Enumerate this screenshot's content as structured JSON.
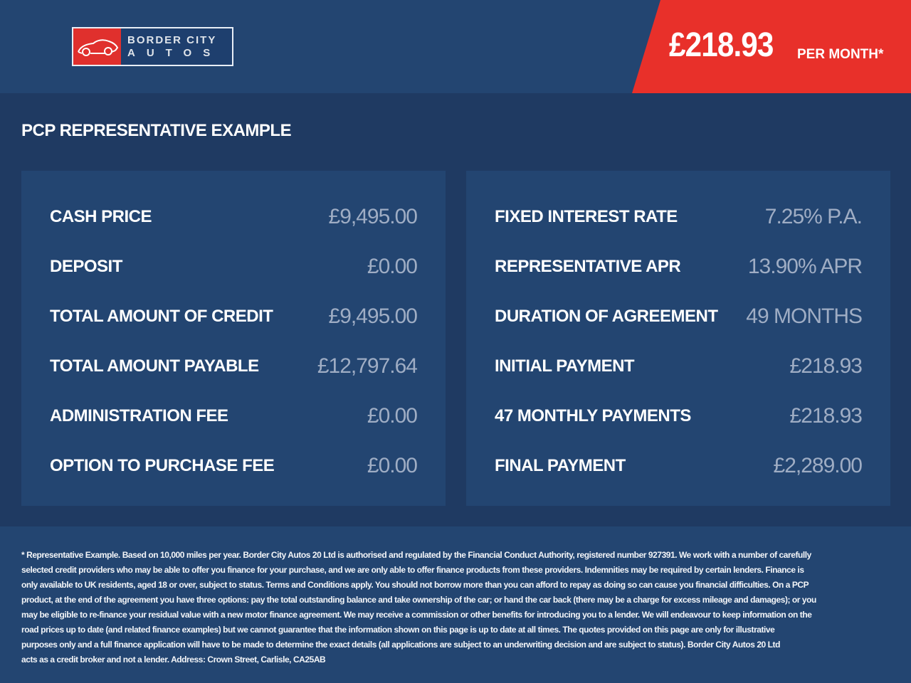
{
  "brand": {
    "name_line1": "BORDER CITY",
    "name_line2": "AUTOS",
    "colors": {
      "accent": "#e8302a",
      "background": "#1f3a62",
      "panel": "#234571"
    }
  },
  "monthly": {
    "amount": "£218.93",
    "suffix": "PER MONTH*"
  },
  "section_title": "PCP REPRESENTATIVE EXAMPLE",
  "left_rows": [
    {
      "label": "CASH PRICE",
      "value": "£9,495.00"
    },
    {
      "label": "DEPOSIT",
      "value": "£0.00"
    },
    {
      "label": "TOTAL AMOUNT OF CREDIT",
      "value": "£9,495.00"
    },
    {
      "label": "TOTAL AMOUNT PAYABLE",
      "value": "£12,797.64"
    },
    {
      "label": "ADMINISTRATION FEE",
      "value": "£0.00"
    },
    {
      "label": "OPTION TO PURCHASE FEE",
      "value": "£0.00"
    }
  ],
  "right_rows": [
    {
      "label": "FIXED INTEREST RATE",
      "value": "7.25% P.A."
    },
    {
      "label": "REPRESENTATIVE APR",
      "value": "13.90% APR"
    },
    {
      "label": "DURATION OF AGREEMENT",
      "value": "49 MONTHS"
    },
    {
      "label": "INITIAL PAYMENT",
      "value": "£218.93"
    },
    {
      "label": "47 MONTHLY PAYMENTS",
      "value": "£218.93"
    },
    {
      "label": "FINAL PAYMENT",
      "value": "£2,289.00"
    }
  ],
  "disclaimer": [
    "* Representative Example. Based on 10,000 miles per year. Border City Autos 20 Ltd is authorised and regulated by the Financial Conduct Authority, registered number 927391. We work with a number of carefully",
    "selected credit providers who may be able to offer you finance for your purchase, and we are only able to offer finance products from these providers. Indemnities may be required by certain lenders. Finance is",
    "only available to UK residents, aged 18 or over, subject to status. Terms and Conditions apply. You should not borrow more than you can afford to repay as doing so can cause you financial difficulties. On a PCP",
    "product, at the end of the agreement you have three options: pay the total outstanding balance and take ownership of the car; or hand the car back (there may be a charge for excess mileage and damages); or you",
    "may be eligible to re-finance your residual value with a new motor finance agreement. We may receive a commission or other benefits for introducing you to a lender. We will endeavour to keep information on the",
    "road prices up to date (and related finance examples) but we cannot guarantee that the information shown on this page is up to date at all times. The quotes provided on this page are only for illustrative",
    "purposes only and a full finance application will have to be made to determine the exact details (all applications are subject to an underwriting decision and are subject to status). Border City Autos 20 Ltd",
    "acts as a credit broker and not a lender. Address: Crown Street, Carlisle, CA25AB"
  ]
}
